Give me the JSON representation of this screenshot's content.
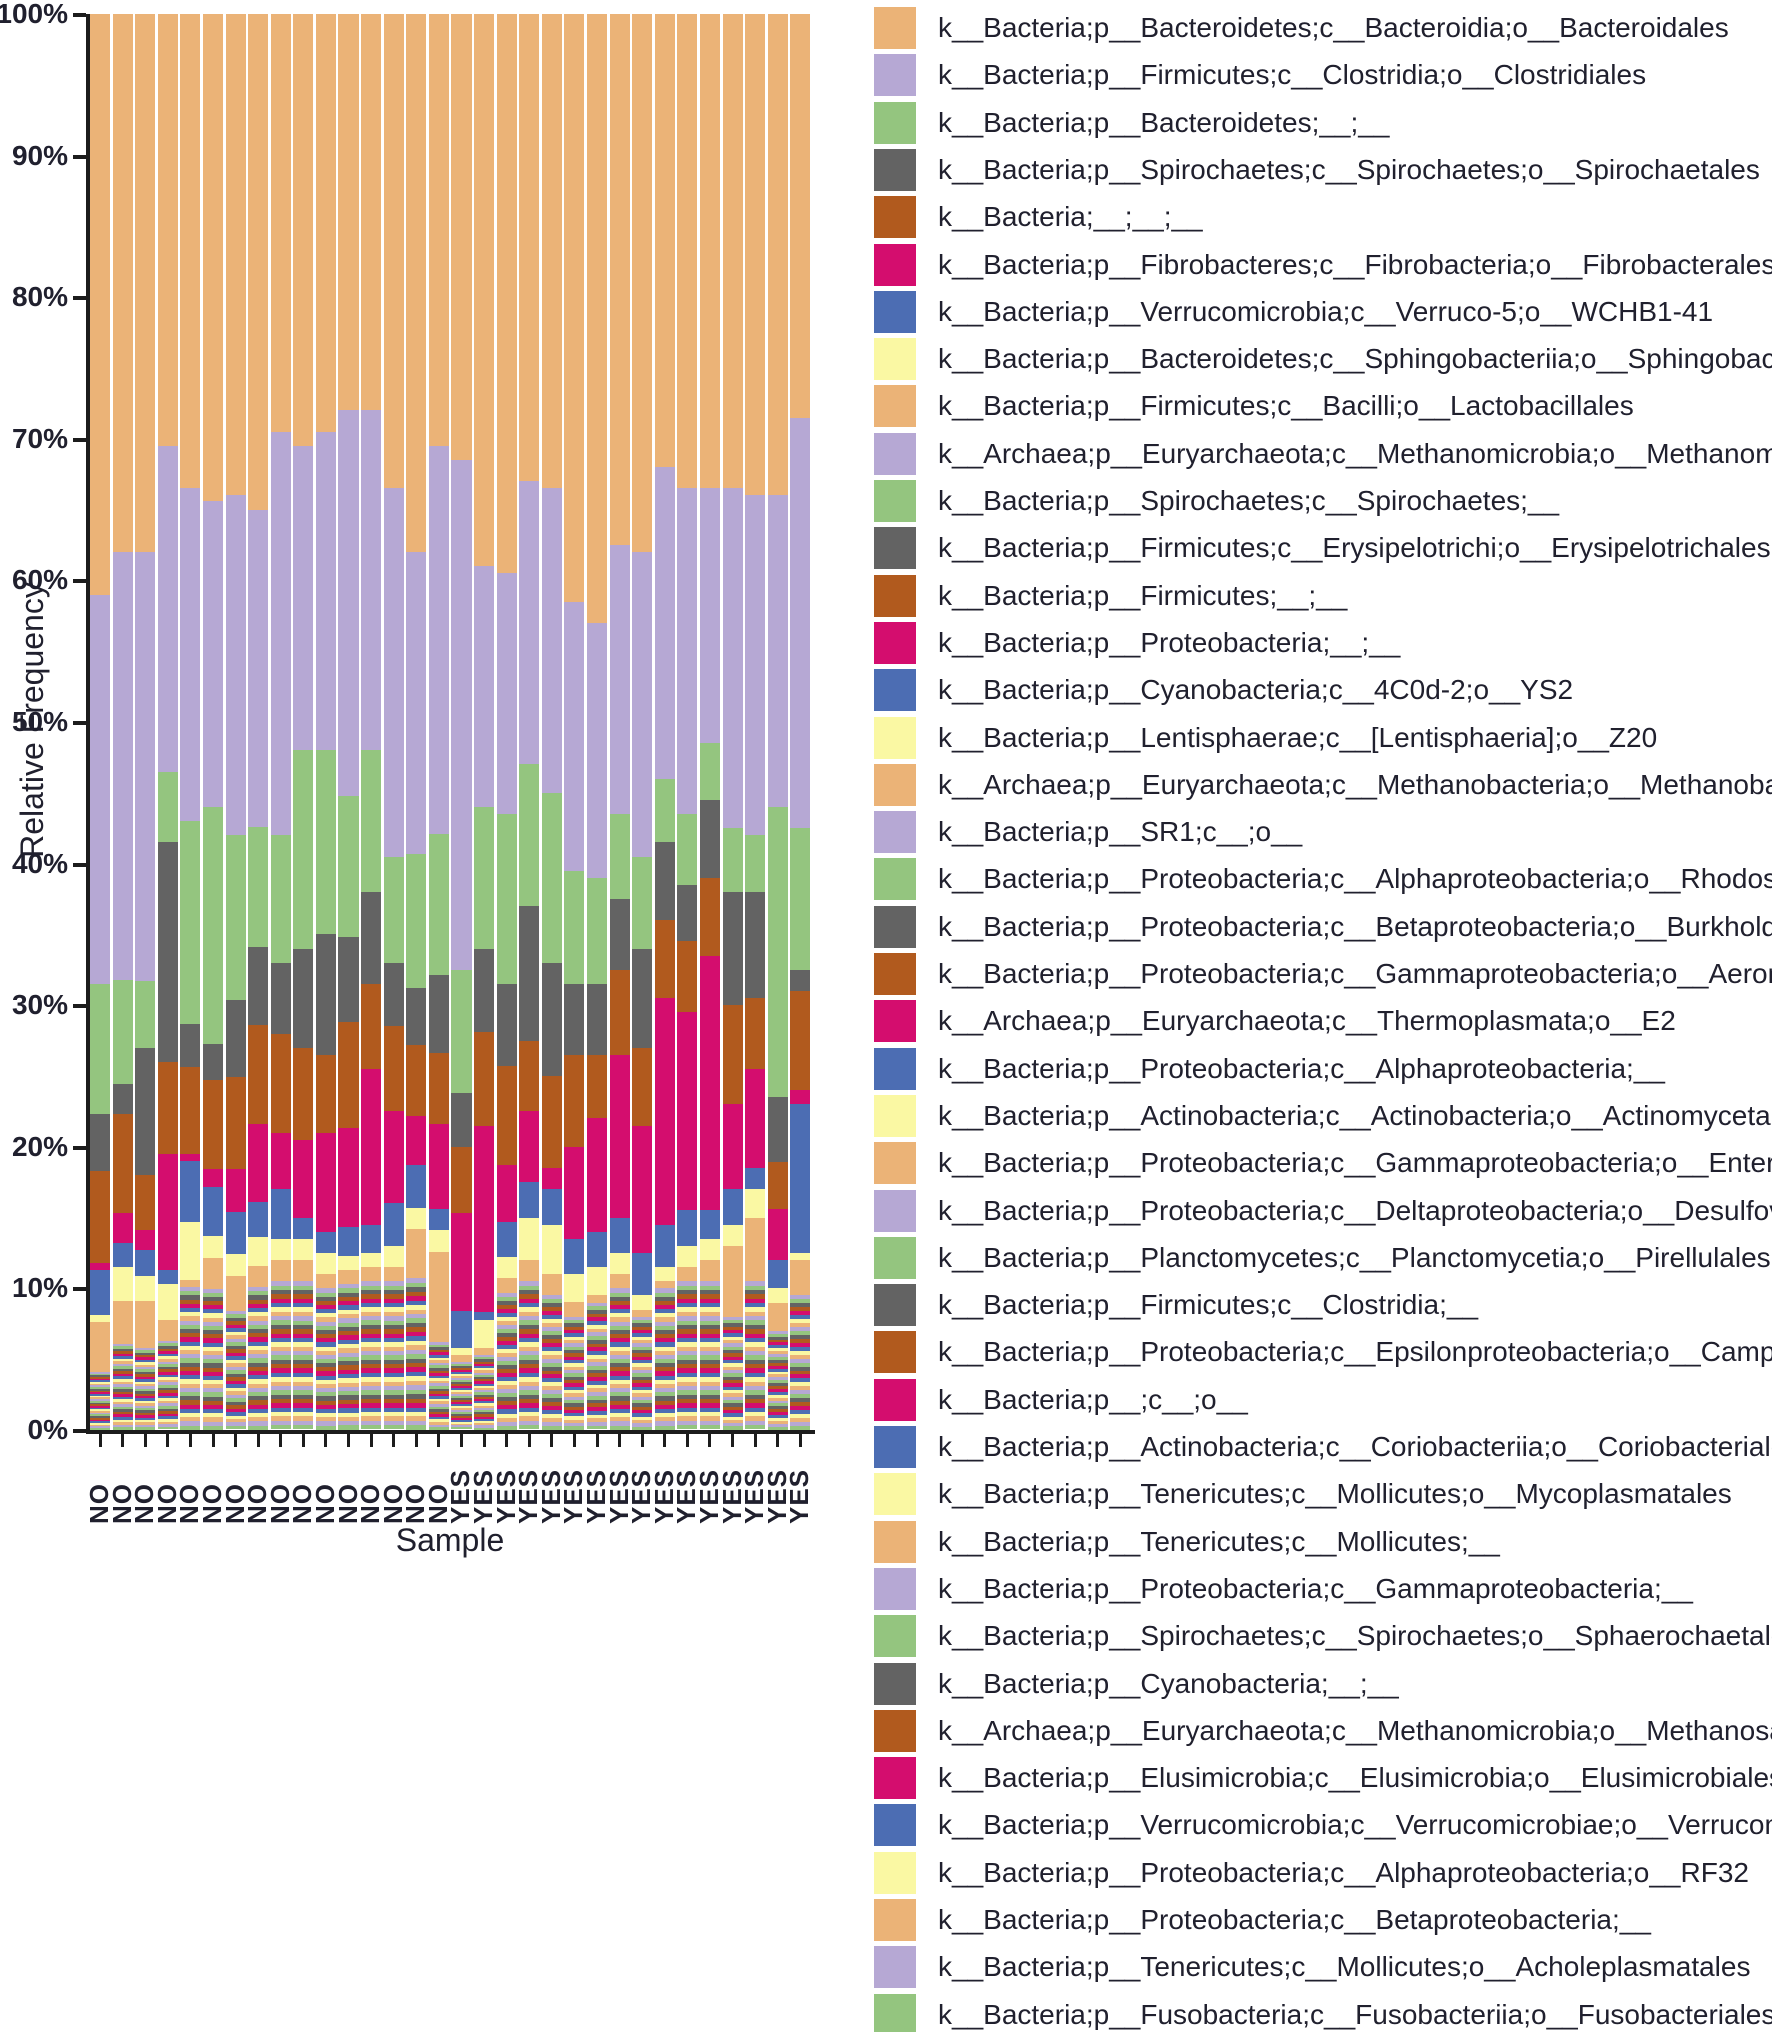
{
  "chart_data": {
    "type": "bar",
    "stacked": true,
    "title": "",
    "xlabel": "Sample",
    "ylabel": "Relative Frequency",
    "ylim": [
      0,
      100
    ],
    "grid": false,
    "legend_position": "right",
    "y_tick_labels": [
      "100%",
      "90%",
      "80%",
      "70%",
      "60%",
      "50%",
      "40%",
      "30%",
      "20%",
      "10%",
      "0%"
    ],
    "categories": [
      "NO",
      "NO",
      "NO",
      "NO",
      "NO",
      "NO",
      "NO",
      "NO",
      "NO",
      "NO",
      "NO",
      "NO",
      "NO",
      "NO",
      "NO",
      "NO",
      "YES",
      "YES",
      "YES",
      "YES",
      "YES",
      "YES",
      "YES",
      "YES",
      "YES",
      "YES",
      "YES",
      "YES",
      "YES",
      "YES",
      "YES",
      "YES"
    ],
    "palette": {
      "tan": "#EBB377",
      "purple": "#B6A8D4",
      "green": "#94C57F",
      "gray": "#636363",
      "brown": "#B15A1E",
      "magenta": "#D40D6E",
      "blue": "#4C6DB3",
      "yellow": "#FAF8A3"
    },
    "color_cycle": [
      "tan",
      "purple",
      "green",
      "gray",
      "brown",
      "magenta",
      "blue",
      "yellow"
    ],
    "minor_remainder_per_bar": [
      4.1,
      6.1,
      5.8,
      6.3,
      10.1,
      10.2,
      8.4,
      10.1,
      10.5,
      10.5,
      10.0,
      10.3,
      10.5,
      10.5,
      10.7,
      6.2,
      4.8,
      5.3,
      9.7,
      10.5,
      9.5,
      8.0,
      9.0,
      10.0,
      8.0,
      10.0,
      10.5,
      10.5,
      8.0,
      10.5,
      7.0,
      9.5
    ],
    "series": [
      {
        "name": "k__Bacteria;p__Bacteroidetes;c__Bacteroidia;o__Bacteroidales",
        "values": [
          41,
          38,
          38,
          30.5,
          33.5,
          35,
          34,
          35,
          29.5,
          30.5,
          29.5,
          28,
          28,
          33.5,
          38,
          30.5,
          31.5,
          39,
          39.5,
          33,
          33.5,
          41.5,
          43,
          37.5,
          38,
          32,
          33.5,
          33.5,
          33.5,
          34,
          34,
          28.5
        ]
      },
      {
        "name": "k__Bacteria;p__Firmicutes;c__Clostridia;o__Clostridiales",
        "values": [
          27.5,
          30.2,
          30.3,
          23,
          23.5,
          22,
          24,
          22.4,
          28.5,
          21.5,
          22.5,
          27.2,
          24,
          26,
          21.3,
          27.4,
          36,
          17,
          17,
          20,
          21.5,
          19,
          18,
          19,
          21.5,
          22,
          23,
          18,
          24,
          24,
          22,
          29
        ]
      },
      {
        "name": "k__Bacteria;p__Bacteroidetes;__;__",
        "values": [
          9.2,
          7.4,
          4.7,
          5,
          14.3,
          17,
          11.6,
          8.5,
          9,
          14,
          13,
          10,
          10,
          7.5,
          9.5,
          10,
          8.7,
          10,
          12,
          10,
          12,
          8,
          7.5,
          6,
          6.5,
          4.5,
          5,
          4,
          4.5,
          4,
          20.5,
          10
        ]
      },
      {
        "name": "k__Bacteria;p__Spirochaetes;c__Spirochaetes;o__Spirochaetales",
        "values": [
          4,
          2.1,
          9,
          15.5,
          3.1,
          2.6,
          5.5,
          5.5,
          5,
          7,
          8.5,
          6,
          6.5,
          4.5,
          4,
          5.5,
          3.8,
          5.9,
          5.8,
          9.5,
          8,
          5,
          5,
          5,
          7,
          5.5,
          4,
          5.5,
          8,
          7.5,
          4.6,
          1.5
        ]
      },
      {
        "name": "k__Bacteria;__;__;__",
        "values": [
          6.5,
          7,
          3.9,
          6.5,
          6.1,
          6.4,
          6.5,
          7,
          7,
          6.5,
          5.5,
          7.5,
          6,
          6,
          5,
          5,
          4.7,
          6.6,
          7,
          5,
          6.5,
          6.5,
          4.5,
          6,
          5.5,
          5.5,
          5,
          5.5,
          7,
          5,
          3.3,
          7
        ]
      },
      {
        "name": "k__Bacteria;p__Fibrobacteres;c__Fibrobacteria;o__Fibrobacterales",
        "values": [
          0.5,
          2.1,
          1.4,
          8.2,
          0.5,
          1.3,
          3,
          5.5,
          4,
          5.5,
          7,
          7,
          11,
          6.5,
          3.5,
          6,
          6.9,
          13.2,
          4,
          5,
          1.5,
          6.5,
          8,
          11.5,
          9,
          16,
          14,
          18,
          6,
          7,
          3.6,
          1
        ]
      },
      {
        "name": "k__Bacteria;p__Verrucomicrobia;c__Verruco-5;o__WCHB1-41",
        "values": [
          3.2,
          1.7,
          1.8,
          1,
          4.3,
          3.5,
          3,
          2.5,
          3.5,
          1.5,
          1.5,
          2,
          2,
          3,
          3,
          1.5,
          2.6,
          0.5,
          2.5,
          2.5,
          2.5,
          2.5,
          2.5,
          2.5,
          3,
          3,
          2.5,
          2,
          2.5,
          1.5,
          2,
          10.5
        ]
      },
      {
        "name": "k__Bacteria;p__Bacteroidetes;c__Sphingobacteriia;o__Sphingobacteriales",
        "values": [
          0.5,
          2.4,
          1.8,
          2.5,
          4.1,
          1.6,
          1.5,
          2,
          1.5,
          1.5,
          1.5,
          1,
          1,
          1.5,
          1.5,
          1.5,
          0.5,
          2,
          1.5,
          3,
          3.5,
          2,
          2,
          1.5,
          1,
          1,
          1.5,
          1.5,
          1.5,
          2,
          1,
          0.5
        ]
      },
      {
        "name": "k__Bacteria;p__Firmicutes;c__Bacilli;o__Lactobacillales",
        "values": [
          3.5,
          3,
          3.3,
          1.5,
          0.5,
          2.2,
          2.5,
          1.5,
          1.5,
          1.5,
          1,
          1,
          1,
          1,
          3.5,
          6.4,
          0.5,
          0.5,
          1,
          1.5,
          1.5,
          1,
          0.5,
          1,
          0.5,
          0.5,
          1,
          1.5,
          5,
          4.5,
          2,
          2.5
        ]
      },
      {
        "name": "k__Archaea;p__Euryarchaeota;c__Methanomicrobia;o__Methanomicrobiales",
        "values": null
      },
      {
        "name": "k__Bacteria;p__Spirochaetes;c__Spirochaetes;__",
        "values": null
      },
      {
        "name": "k__Bacteria;p__Firmicutes;c__Erysipelotrichi;o__Erysipelotrichales",
        "values": null
      },
      {
        "name": "k__Bacteria;p__Firmicutes;__;__",
        "values": null
      },
      {
        "name": "k__Bacteria;p__Proteobacteria;__;__",
        "values": null
      },
      {
        "name": "k__Bacteria;p__Cyanobacteria;c__4C0d-2;o__YS2",
        "values": null
      },
      {
        "name": "k__Bacteria;p__Lentisphaerae;c__[Lentisphaeria];o__Z20",
        "values": null
      },
      {
        "name": "k__Archaea;p__Euryarchaeota;c__Methanobacteria;o__Methanobacteriales",
        "values": null
      },
      {
        "name": "k__Bacteria;p__SR1;c__;o__",
        "values": null
      },
      {
        "name": "k__Bacteria;p__Proteobacteria;c__Alphaproteobacteria;o__Rhodospirillales",
        "values": null
      },
      {
        "name": "k__Bacteria;p__Proteobacteria;c__Betaproteobacteria;o__Burkholderiales",
        "values": null
      },
      {
        "name": "k__Bacteria;p__Proteobacteria;c__Gammaproteobacteria;o__Aeromonadales",
        "values": null
      },
      {
        "name": "k__Archaea;p__Euryarchaeota;c__Thermoplasmata;o__E2",
        "values": null
      },
      {
        "name": "k__Bacteria;p__Proteobacteria;c__Alphaproteobacteria;__",
        "values": null
      },
      {
        "name": "k__Bacteria;p__Actinobacteria;c__Actinobacteria;o__Actinomycetales",
        "values": null
      },
      {
        "name": "k__Bacteria;p__Proteobacteria;c__Gammaproteobacteria;o__Enterobacteriales",
        "values": null
      },
      {
        "name": "k__Bacteria;p__Proteobacteria;c__Deltaproteobacteria;o__Desulfovibrionales",
        "values": null
      },
      {
        "name": "k__Bacteria;p__Planctomycetes;c__Planctomycetia;o__Pirellulales",
        "values": null
      },
      {
        "name": "k__Bacteria;p__Firmicutes;c__Clostridia;__",
        "values": null
      },
      {
        "name": "k__Bacteria;p__Proteobacteria;c__Epsilonproteobacteria;o__Campylobacterales",
        "values": null
      },
      {
        "name": "k__Bacteria;p__;c__;o__",
        "values": null
      },
      {
        "name": "k__Bacteria;p__Actinobacteria;c__Coriobacteriia;o__Coriobacteriales",
        "values": null
      },
      {
        "name": "k__Bacteria;p__Tenericutes;c__Mollicutes;o__Mycoplasmatales",
        "values": null
      },
      {
        "name": "k__Bacteria;p__Tenericutes;c__Mollicutes;__",
        "values": null
      },
      {
        "name": "k__Bacteria;p__Proteobacteria;c__Gammaproteobacteria;__",
        "values": null
      },
      {
        "name": "k__Bacteria;p__Spirochaetes;c__Spirochaetes;o__Sphaerochaetales",
        "values": null
      },
      {
        "name": "k__Bacteria;p__Cyanobacteria;__;__",
        "values": null
      },
      {
        "name": "k__Archaea;p__Euryarchaeota;c__Methanomicrobia;o__Methanosarcinales",
        "values": null
      },
      {
        "name": "k__Bacteria;p__Elusimicrobia;c__Elusimicrobia;o__Elusimicrobiales",
        "values": null
      },
      {
        "name": "k__Bacteria;p__Verrucomicrobia;c__Verrucomicrobiae;o__Verrucomicrobiales",
        "values": null
      },
      {
        "name": "k__Bacteria;p__Proteobacteria;c__Alphaproteobacteria;o__RF32",
        "values": null
      },
      {
        "name": "k__Bacteria;p__Proteobacteria;c__Betaproteobacteria;__",
        "values": null
      },
      {
        "name": "k__Bacteria;p__Tenericutes;c__Mollicutes;o__Acholeplasmatales",
        "values": null
      },
      {
        "name": "k__Bacteria;p__Fusobacteria;c__Fusobacteriia;o__Fusobacteriales",
        "values": null
      }
    ]
  }
}
